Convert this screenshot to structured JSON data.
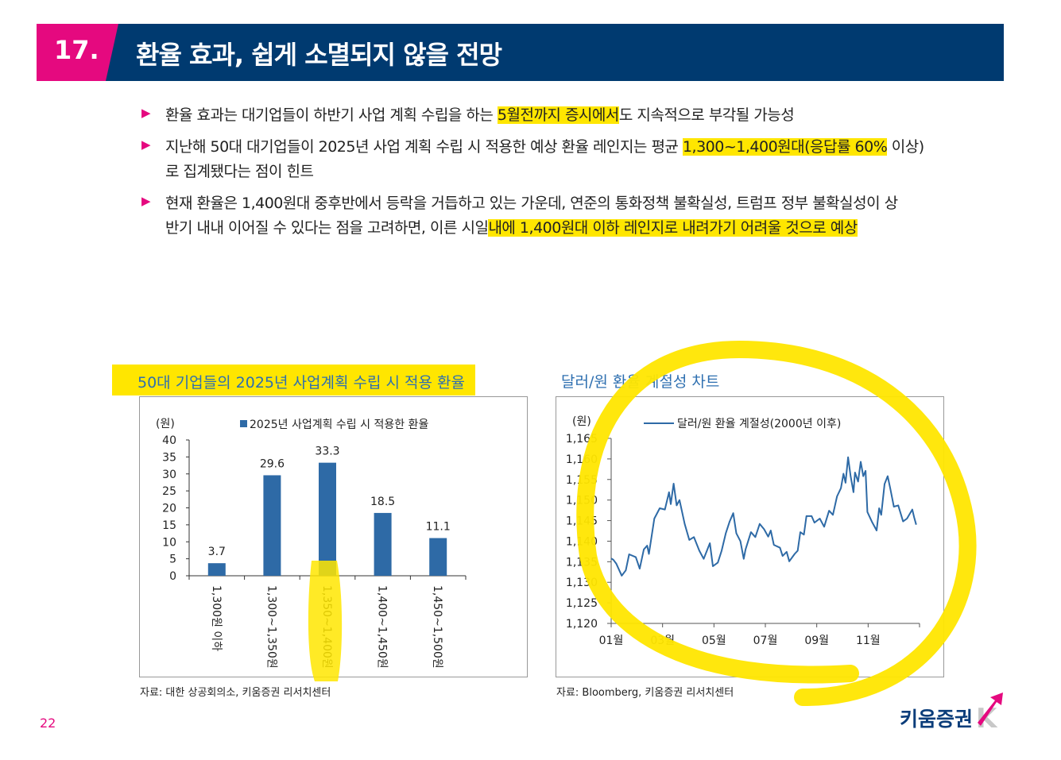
{
  "header": {
    "number": "17.",
    "title": "환율 효과, 쉽게 소멸되지 않을 전망"
  },
  "bullets": [
    {
      "lines": [
        [
          {
            "t": "환율 효과는 대기업들이 하반기 사업 계획 수립을 하는 ",
            "h": false
          },
          {
            "t": "5월전까지 증시에서",
            "h": true
          },
          {
            "t": "도 지속적으로 부각될 가능성",
            "h": false
          }
        ]
      ]
    },
    {
      "lines": [
        [
          {
            "t": "지난해 50대 대기업들이 2025년 사업 계획 수립 시 적용한 예상 환율 레인지는 평균 ",
            "h": false
          },
          {
            "t": "1,300~1,400원대(응답률 60%",
            "h": true
          },
          {
            "t": " 이상)",
            "h": false
          }
        ],
        [
          {
            "t": "로 집계됐다는 점이 힌트",
            "h": false
          }
        ]
      ]
    },
    {
      "lines": [
        [
          {
            "t": "현재 환율은 1,400원대 중후반에서 등락을 거듭하고 있는 가운데, 연준의 통화정책 불확실성, 트럼프 정부 불확실성이 상",
            "h": false
          }
        ],
        [
          {
            "t": "반기 내내 이어질 수 있다는 점을 고려하면, 이른 시일",
            "h": false
          },
          {
            "t": "내에 1,400원대 이하 레인지로 내려가기 어려울 것으로 예상",
            "h": true
          }
        ]
      ]
    }
  ],
  "left_chart_title": "50대 기업들의 2025년 사업계획 수립 시 적용 환율",
  "right_chart_title": "달러/원 환율 계절성 차트",
  "left_source": "자료: 대한 상공회의소, 키움증권 리서치센터",
  "right_source": "자료: Bloomberg, 키움증권 리서치센터",
  "page_number": "22",
  "logo_text": "키움증권",
  "colors": {
    "accent": "#e5097f",
    "navy": "#003a70",
    "series": "#2e6aa6",
    "highlight": "#ffe600"
  },
  "chart_data": [
    {
      "type": "bar",
      "title": "50대 기업들의 2025년 사업계획 수립 시 적용 환율",
      "ylabel": "(원)",
      "legend": "2025년 사업계획 수립 시 적용한 환율",
      "legend_position": "top",
      "categories": [
        "1,300원 이하",
        "1,300~1,350원",
        "1,350~1,400원",
        "1,400~1,450원",
        "1,450~1,500원"
      ],
      "values": [
        3.7,
        29.6,
        33.3,
        18.5,
        11.1
      ],
      "value_labels": [
        "3.7",
        "29.6",
        "33.3",
        "18.5",
        "11.1"
      ],
      "ylim": [
        0,
        40
      ],
      "yticks": [
        0,
        5,
        10,
        15,
        20,
        25,
        30,
        35,
        40
      ]
    },
    {
      "type": "line",
      "title": "달러/원 환율 계절성 차트",
      "ylabel": "(원)",
      "legend": "달러/원 환율 계절성(2000년 이후)",
      "legend_position": "top",
      "xticks": [
        1,
        3,
        5,
        7,
        9,
        11
      ],
      "xtick_labels": [
        "01월",
        "03월",
        "05월",
        "07월",
        "09월",
        "11월"
      ],
      "xlim": [
        1,
        13
      ],
      "ylim": [
        1120,
        1165
      ],
      "yticks": [
        1120,
        1125,
        1130,
        1135,
        1140,
        1145,
        1150,
        1155,
        1160,
        1165
      ],
      "ytick_labels": [
        "1,120",
        "1,125",
        "1,130",
        "1,135",
        "1,140",
        "1,145",
        "1,150",
        "1,155",
        "1,160",
        "1,165"
      ],
      "x": [
        1.0,
        1.08,
        1.2,
        1.41,
        1.57,
        1.7,
        1.96,
        2.11,
        2.27,
        2.4,
        2.47,
        2.68,
        2.89,
        3.09,
        3.25,
        3.32,
        3.43,
        3.55,
        3.66,
        3.86,
        4.04,
        4.22,
        4.43,
        4.6,
        4.84,
        4.96,
        5.15,
        5.3,
        5.46,
        5.61,
        5.75,
        5.87,
        6.03,
        6.16,
        6.23,
        6.44,
        6.61,
        6.78,
        6.95,
        7.11,
        7.21,
        7.33,
        7.57,
        7.67,
        7.83,
        7.93,
        8.14,
        8.26,
        8.36,
        8.5,
        8.6,
        8.8,
        8.91,
        9.12,
        9.29,
        9.48,
        9.63,
        9.79,
        9.94,
        10.04,
        10.12,
        10.22,
        10.32,
        10.43,
        10.49,
        10.61,
        10.71,
        10.81,
        10.9,
        10.97,
        11.14,
        11.33,
        11.43,
        11.51,
        11.64,
        11.76,
        11.86,
        12.0,
        12.17,
        12.36,
        12.51,
        12.72,
        12.79,
        12.87
      ],
      "y": [
        1135.8,
        1135.5,
        1134.5,
        1131.6,
        1132.9,
        1136.8,
        1136.1,
        1133.3,
        1138,
        1138.9,
        1136.9,
        1145.5,
        1148,
        1147.7,
        1151.9,
        1149,
        1154,
        1148.7,
        1150,
        1144.2,
        1140.3,
        1141,
        1137.7,
        1135.7,
        1139.5,
        1133.9,
        1134.8,
        1137.7,
        1141.9,
        1144.8,
        1146.8,
        1141.9,
        1140,
        1135.7,
        1138,
        1142.2,
        1141,
        1144.2,
        1142.9,
        1141.1,
        1142.6,
        1139.1,
        1138.4,
        1136.4,
        1137.4,
        1135.1,
        1136.9,
        1137.7,
        1142.2,
        1141.6,
        1146.1,
        1146.1,
        1144.5,
        1145.5,
        1143.5,
        1147.4,
        1146.4,
        1150.9,
        1152.9,
        1156.4,
        1154.2,
        1160.4,
        1155.8,
        1151.9,
        1156.7,
        1154.5,
        1159.3,
        1155.8,
        1157.1,
        1147.1,
        1144.8,
        1142.6,
        1148,
        1146.4,
        1153.9,
        1155.8,
        1152.9,
        1148.4,
        1148.7,
        1144.8,
        1145.5,
        1147.7,
        1145.8,
        1144
      ]
    }
  ]
}
